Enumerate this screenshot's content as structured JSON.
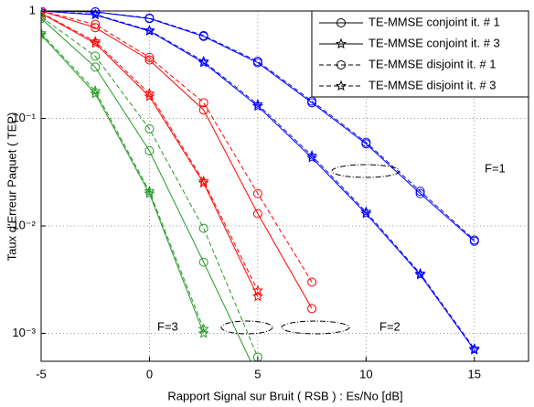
{
  "chart_data": {
    "type": "line",
    "xlabel": "Rapport Signal sur Bruit ( RSB ) : Es/No [dB]",
    "ylabel": "Taux d'Erreur Paquet ( TEP)",
    "x": [
      -5,
      -2.5,
      0,
      2.5,
      5,
      7.5,
      10,
      12.5,
      15
    ],
    "xlim": [
      -5,
      17.5
    ],
    "xticks": [
      -5,
      0,
      5,
      10,
      15
    ],
    "ylog": true,
    "ylim": [
      0.00055,
      1
    ],
    "yticks": [
      {
        "value": 1,
        "label": "1"
      },
      {
        "value": 0.1,
        "label": "10⁻¹"
      },
      {
        "value": 0.01,
        "label": "10⁻²"
      },
      {
        "value": 0.001,
        "label": "10⁻³"
      }
    ],
    "grid": true,
    "legend": "upper right",
    "annotations": [
      "F=1",
      "F=2",
      "F=3"
    ],
    "series": [
      {
        "name": "TE-MMSE conjoint it. # 1",
        "color": "#0000ff",
        "marker": "circle",
        "dashed": false,
        "values": [
          1,
          0.98,
          0.85,
          0.58,
          0.33,
          0.14,
          0.058,
          0.02,
          0.0072
        ]
      },
      {
        "name": "TE-MMSE conjoint it. # 3",
        "color": "#0000ff",
        "marker": "star",
        "dashed": false,
        "values": [
          1,
          0.92,
          0.65,
          0.33,
          0.13,
          0.043,
          0.013,
          0.0035,
          0.0007
        ]
      },
      {
        "name": "TE-MMSE disjoint it. # 1",
        "color": "#0000ff",
        "marker": "circle",
        "dashed": true,
        "values": [
          1,
          0.98,
          0.86,
          0.59,
          0.34,
          0.145,
          0.06,
          0.021,
          0.0074
        ]
      },
      {
        "name": "TE-MMSE disjoint it. # 3",
        "color": "#0000ff",
        "marker": "star",
        "dashed": true,
        "values": [
          1,
          0.93,
          0.66,
          0.34,
          0.135,
          0.045,
          0.0135,
          0.0036,
          0.00072
        ]
      },
      {
        "color": "#ff0000",
        "marker": "circle",
        "dashed": false,
        "values": [
          1,
          0.7,
          0.35,
          0.12,
          0.013,
          0.0017,
          null,
          null,
          null
        ]
      },
      {
        "color": "#ff0000",
        "marker": "star",
        "dashed": false,
        "values": [
          0.95,
          0.5,
          0.16,
          0.025,
          0.0022,
          null,
          null,
          null,
          null
        ]
      },
      {
        "color": "#ff0000",
        "marker": "circle",
        "dashed": true,
        "values": [
          1,
          0.75,
          0.37,
          0.14,
          0.02,
          0.003,
          null,
          null,
          null
        ]
      },
      {
        "color": "#ff0000",
        "marker": "star",
        "dashed": true,
        "values": [
          0.96,
          0.52,
          0.17,
          0.026,
          0.0025,
          null,
          null,
          null,
          null
        ]
      },
      {
        "color": "#229922",
        "marker": "circle",
        "dashed": false,
        "values": [
          0.85,
          0.3,
          0.05,
          0.0046,
          0.0004,
          null,
          null,
          null,
          null
        ]
      },
      {
        "color": "#229922",
        "marker": "star",
        "dashed": false,
        "values": [
          0.6,
          0.17,
          0.02,
          0.001,
          null,
          null,
          null,
          null,
          null
        ]
      },
      {
        "color": "#229922",
        "marker": "circle",
        "dashed": true,
        "values": [
          0.88,
          0.38,
          0.08,
          0.0095,
          0.0006,
          null,
          null,
          null,
          null
        ]
      },
      {
        "color": "#229922",
        "marker": "star",
        "dashed": true,
        "values": [
          0.62,
          0.18,
          0.021,
          0.0011,
          null,
          null,
          null,
          null,
          null
        ]
      }
    ]
  }
}
